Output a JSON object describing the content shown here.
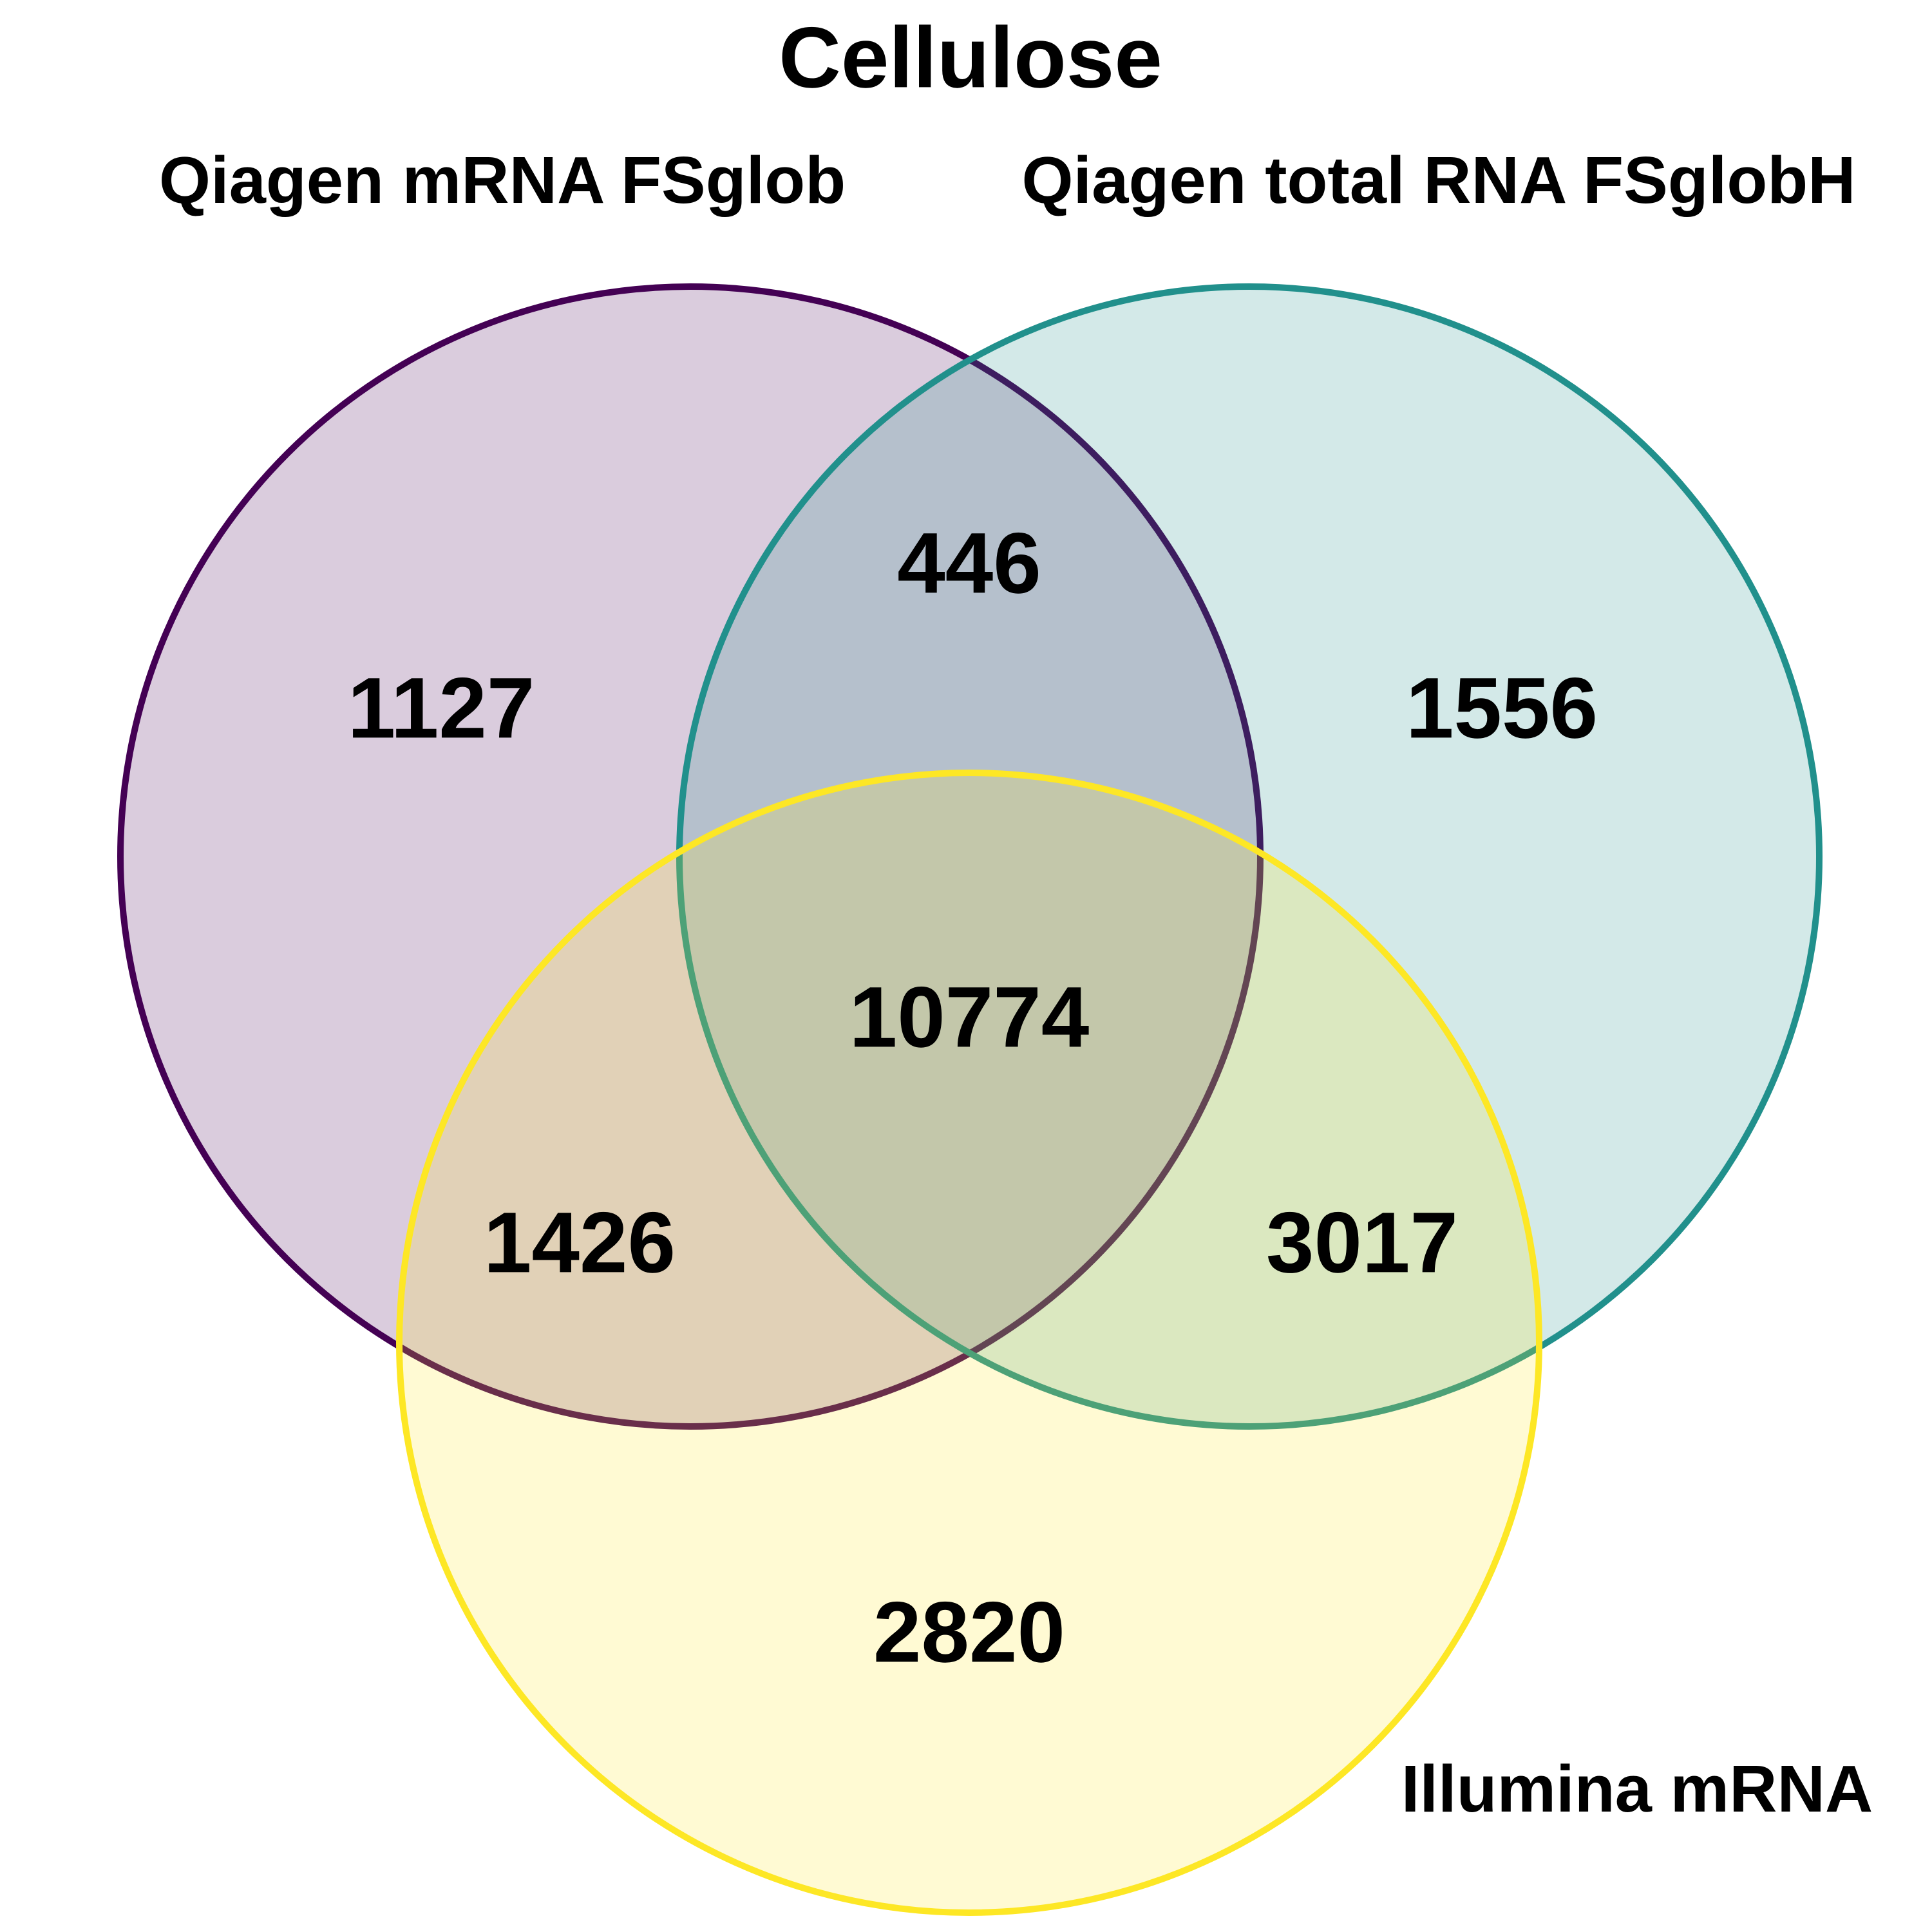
{
  "title": "Cellulose",
  "sets": [
    {
      "id": "a",
      "label": "Qiagen mRNA FSglob",
      "fill": "#440154",
      "stroke": "#440154",
      "fill_opacity": 0.2
    },
    {
      "id": "b",
      "label": "Qiagen total RNA FSglobH",
      "fill": "#21908C",
      "stroke": "#21908C",
      "fill_opacity": 0.2
    },
    {
      "id": "c",
      "label": "Illumina mRNA",
      "fill": "#FDE725",
      "stroke": "#FDE725",
      "fill_opacity": 0.2
    }
  ],
  "regions": {
    "a_only": "1127",
    "b_only": "1556",
    "c_only": "2820",
    "ab": "446",
    "ac": "1426",
    "bc": "3017",
    "abc": "10774"
  }
}
